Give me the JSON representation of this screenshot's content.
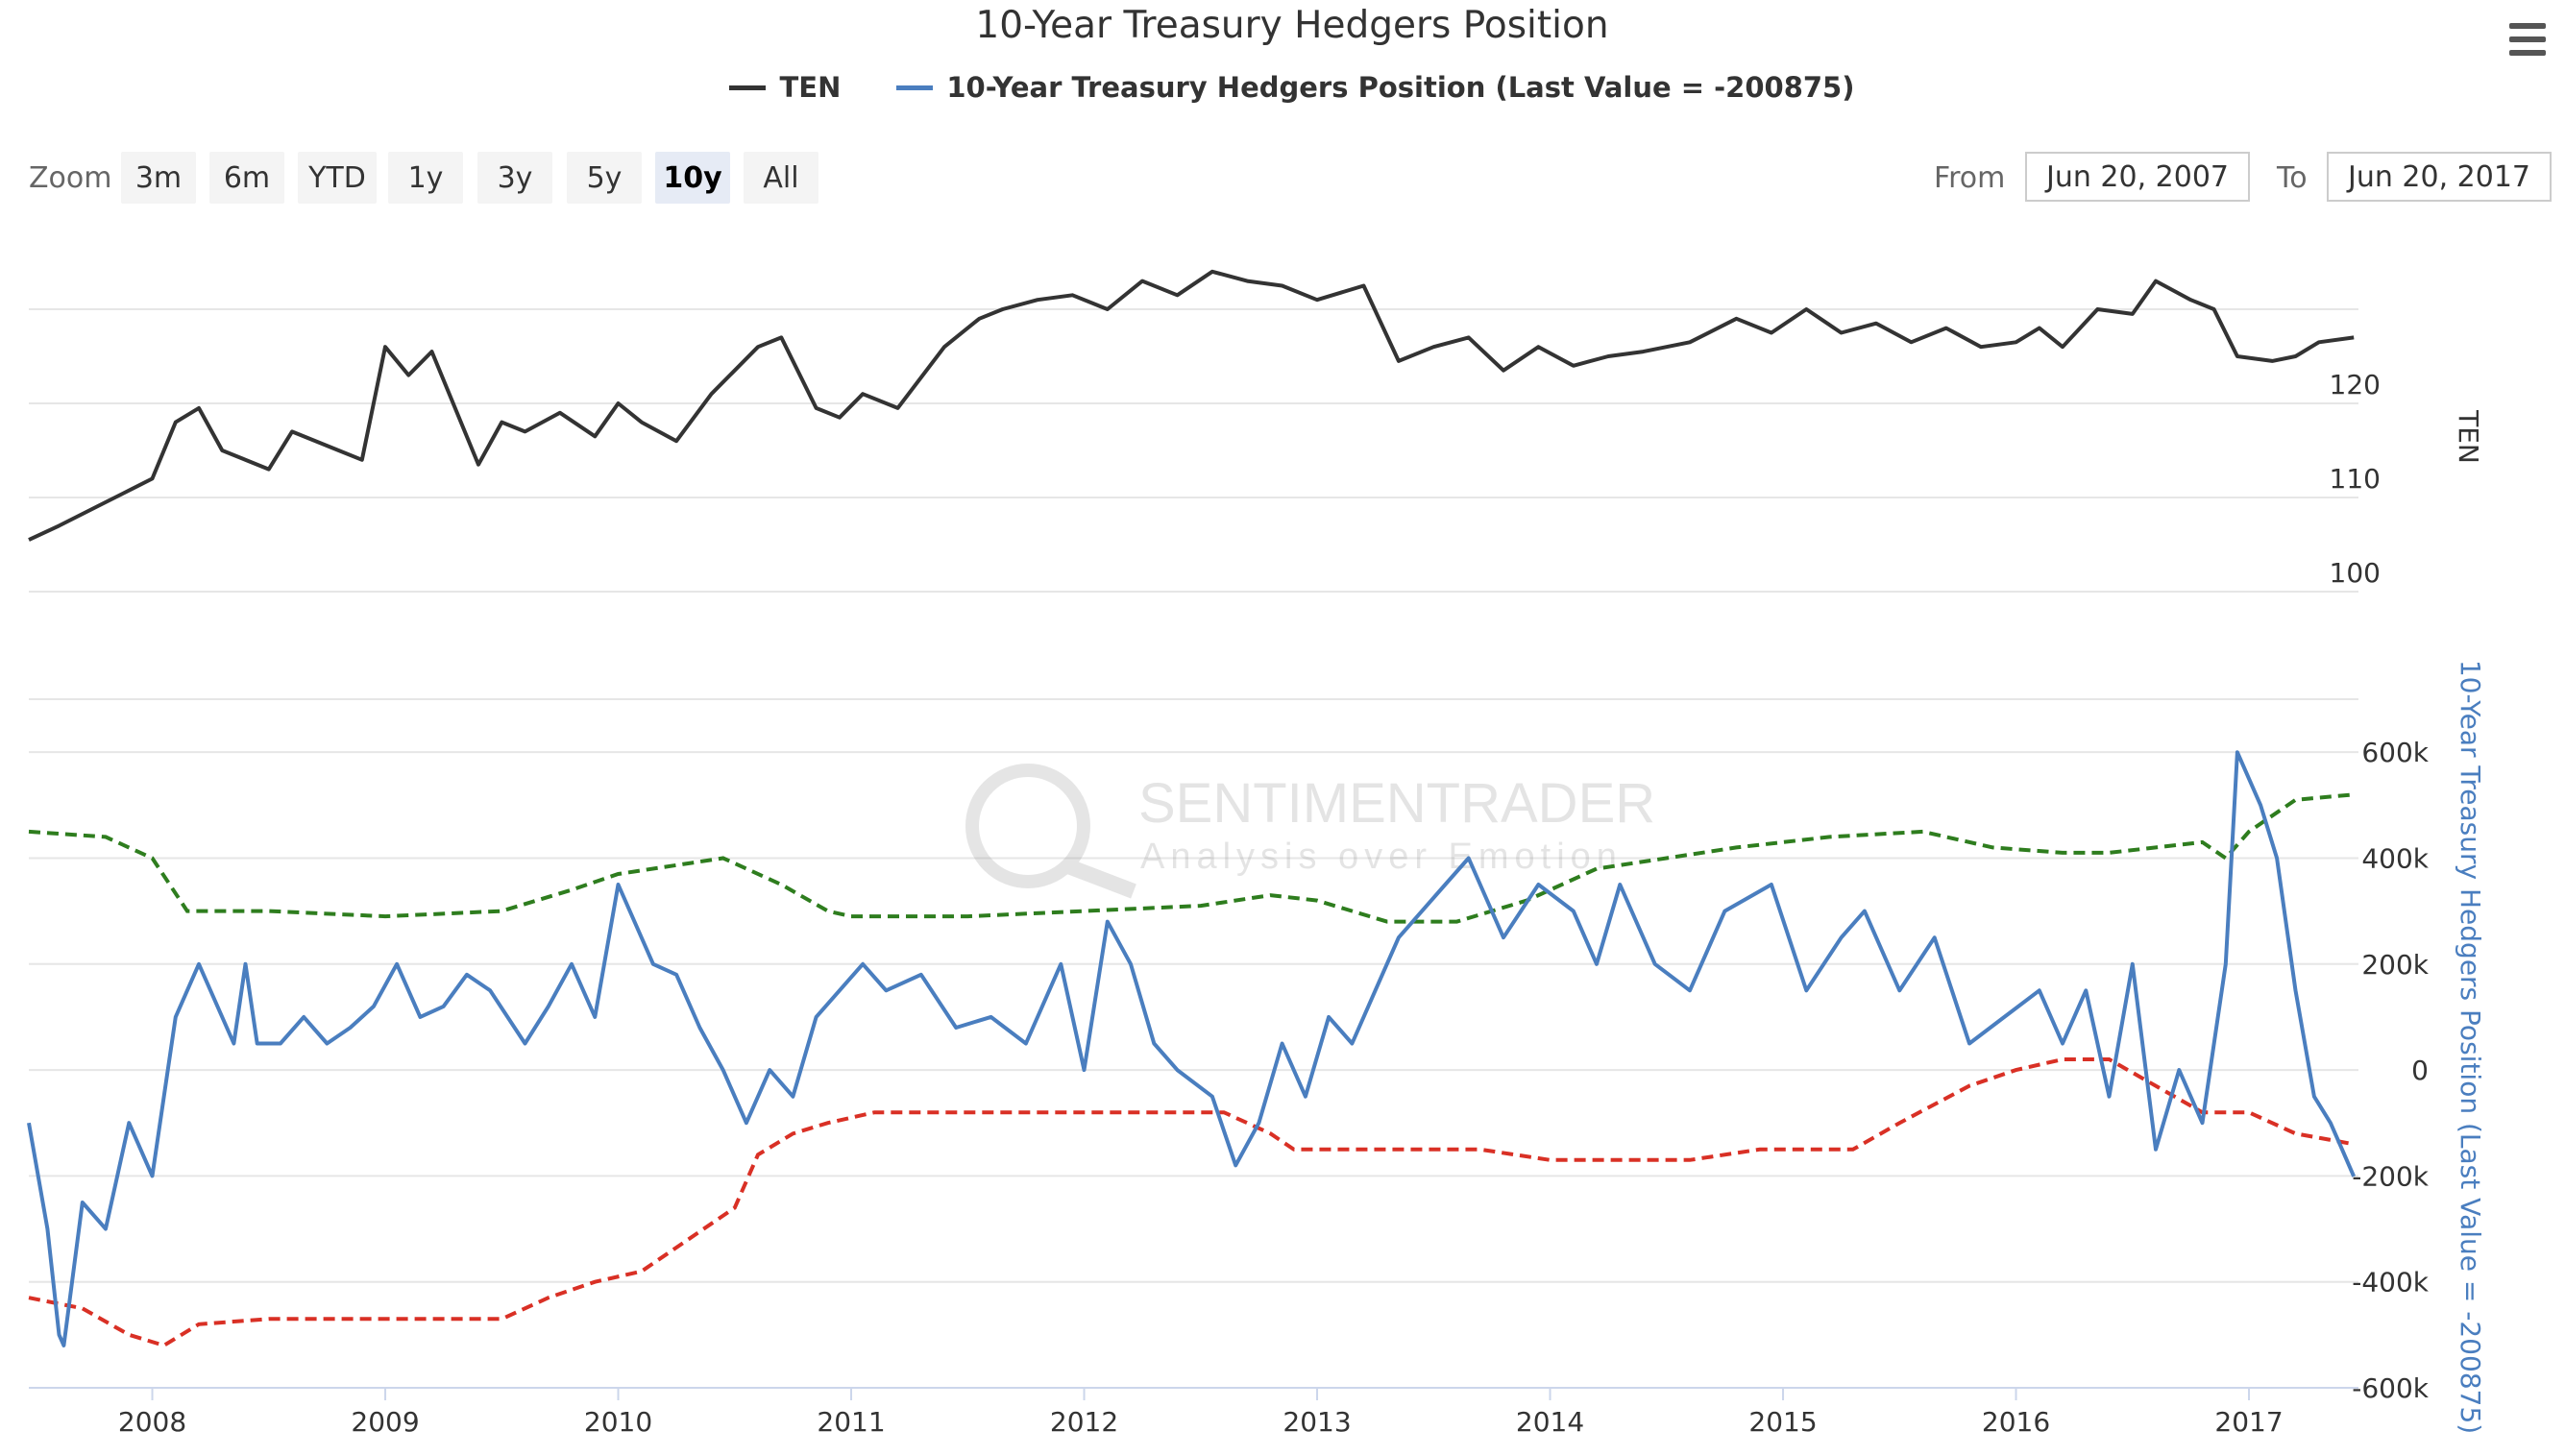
{
  "header": {
    "title": "10-Year Treasury Hedgers Position"
  },
  "legend": [
    {
      "label": "TEN",
      "color": "#333333"
    },
    {
      "label": "10-Year Treasury Hedgers Position (Last Value = -200875)",
      "color": "#4a7ebf"
    }
  ],
  "zoom": {
    "label": "Zoom",
    "buttons": [
      "3m",
      "6m",
      "YTD",
      "1y",
      "3y",
      "5y",
      "10y",
      "All"
    ],
    "active": "10y"
  },
  "range": {
    "from_label": "From",
    "from_value": "Jun 20, 2007",
    "to_label": "To",
    "to_value": "Jun 20, 2017"
  },
  "watermark": {
    "brand": "SENTIMENTRADER",
    "tagline": "Analysis over Emotion"
  },
  "colors": {
    "ten": "#333333",
    "hedgers": "#4a7ebf",
    "upper_band": "#2e7d1e",
    "lower_band": "#d93025",
    "grid": "#e6e6e6"
  },
  "chart_data": [
    {
      "type": "line",
      "name": "TEN",
      "axis_title": "TEN",
      "ylim": [
        95,
        130
      ],
      "yticks": [
        "100",
        "110",
        "120"
      ],
      "x": [
        2007.47,
        2007.6,
        2007.8,
        2008.0,
        2008.1,
        2008.2,
        2008.3,
        2008.5,
        2008.6,
        2008.8,
        2008.9,
        2009.0,
        2009.1,
        2009.2,
        2009.4,
        2009.5,
        2009.6,
        2009.75,
        2009.9,
        2010.0,
        2010.1,
        2010.25,
        2010.4,
        2010.6,
        2010.7,
        2010.85,
        2010.95,
        2011.05,
        2011.2,
        2011.4,
        2011.55,
        2011.65,
        2011.8,
        2011.95,
        2012.1,
        2012.25,
        2012.4,
        2012.55,
        2012.7,
        2012.85,
        2013.0,
        2013.2,
        2013.35,
        2013.5,
        2013.65,
        2013.8,
        2013.95,
        2014.1,
        2014.25,
        2014.4,
        2014.6,
        2014.8,
        2014.95,
        2015.1,
        2015.25,
        2015.4,
        2015.55,
        2015.7,
        2015.85,
        2016.0,
        2016.1,
        2016.2,
        2016.35,
        2016.5,
        2016.6,
        2016.75,
        2016.85,
        2016.95,
        2017.1,
        2017.2,
        2017.3,
        2017.45
      ],
      "values": [
        105.5,
        107,
        109.5,
        112,
        118,
        119.5,
        115,
        113,
        117,
        115,
        114,
        126,
        123,
        125.5,
        113.5,
        118,
        117,
        119,
        116.5,
        120,
        118,
        116,
        121,
        126,
        127,
        119.5,
        118.5,
        121,
        119.5,
        126,
        129,
        130,
        131,
        131.5,
        130,
        133,
        131.5,
        134,
        133,
        132.5,
        131,
        132.5,
        124.5,
        126,
        127,
        123.5,
        126,
        124,
        125,
        125.5,
        126.5,
        129,
        127.5,
        130,
        127.5,
        128.5,
        126.5,
        128,
        126,
        126.5,
        128,
        126,
        130,
        129.5,
        133,
        131,
        130,
        125,
        124.5,
        125,
        126.5,
        127
      ]
    },
    {
      "type": "line",
      "name": "10-Year Treasury Hedgers Position",
      "axis_title": "10-Year Treasury Hedgers Position (Last Value = -200875)",
      "ylim": [
        -600000,
        700000
      ],
      "yticks": [
        "-600k",
        "-400k",
        "-200k",
        "0",
        "200k",
        "400k",
        "600k"
      ],
      "x": [
        2007.47,
        2007.55,
        2007.6,
        2007.62,
        2007.7,
        2007.8,
        2007.9,
        2008.0,
        2008.1,
        2008.15,
        2008.2,
        2008.35,
        2008.4,
        2008.45,
        2008.55,
        2008.65,
        2008.75,
        2008.85,
        2008.95,
        2009.05,
        2009.15,
        2009.25,
        2009.35,
        2009.45,
        2009.6,
        2009.7,
        2009.8,
        2009.9,
        2010.0,
        2010.15,
        2010.25,
        2010.35,
        2010.45,
        2010.55,
        2010.65,
        2010.75,
        2010.85,
        2010.95,
        2011.05,
        2011.15,
        2011.3,
        2011.45,
        2011.6,
        2011.75,
        2011.9,
        2012.0,
        2012.1,
        2012.2,
        2012.3,
        2012.4,
        2012.55,
        2012.65,
        2012.75,
        2012.85,
        2012.95,
        2013.05,
        2013.15,
        2013.25,
        2013.35,
        2013.45,
        2013.55,
        2013.65,
        2013.8,
        2013.95,
        2014.1,
        2014.2,
        2014.3,
        2014.45,
        2014.6,
        2014.75,
        2014.95,
        2015.1,
        2015.25,
        2015.35,
        2015.5,
        2015.65,
        2015.8,
        2015.95,
        2016.1,
        2016.2,
        2016.3,
        2016.4,
        2016.5,
        2016.6,
        2016.7,
        2016.8,
        2016.9,
        2016.95,
        2017.05,
        2017.12,
        2017.2,
        2017.28,
        2017.35,
        2017.4,
        2017.45
      ],
      "values": [
        -100000,
        -300000,
        -500000,
        -520000,
        -250000,
        -300000,
        -100000,
        -200000,
        100000,
        150000,
        200000,
        50000,
        200000,
        50000,
        50000,
        100000,
        50000,
        80000,
        120000,
        200000,
        100000,
        120000,
        180000,
        150000,
        50000,
        120000,
        200000,
        100000,
        350000,
        200000,
        180000,
        80000,
        0,
        -100000,
        0,
        -50000,
        100000,
        150000,
        200000,
        150000,
        180000,
        80000,
        100000,
        50000,
        200000,
        0,
        280000,
        200000,
        50000,
        0,
        -50000,
        -180000,
        -100000,
        50000,
        -50000,
        100000,
        50000,
        150000,
        250000,
        300000,
        350000,
        400000,
        250000,
        350000,
        300000,
        200000,
        350000,
        200000,
        150000,
        300000,
        350000,
        150000,
        250000,
        300000,
        150000,
        250000,
        50000,
        100000,
        150000,
        50000,
        150000,
        -50000,
        200000,
        -150000,
        0,
        -100000,
        200000,
        600000,
        500000,
        400000,
        150000,
        -50000,
        -100000,
        -150000,
        -200875
      ]
    },
    {
      "type": "line",
      "name": "Upper band",
      "style": "dashed",
      "x": [
        2007.47,
        2007.8,
        2008.0,
        2008.15,
        2008.5,
        2009.0,
        2009.5,
        2009.8,
        2010.0,
        2010.3,
        2010.45,
        2010.7,
        2010.9,
        2011.0,
        2011.5,
        2012.0,
        2012.5,
        2012.8,
        2013.0,
        2013.3,
        2013.6,
        2013.9,
        2014.2,
        2014.5,
        2014.8,
        2015.0,
        2015.2,
        2015.6,
        2015.9,
        2016.2,
        2016.4,
        2016.6,
        2016.8,
        2016.9,
        2017.0,
        2017.2,
        2017.45
      ],
      "values": [
        450000,
        440000,
        400000,
        300000,
        300000,
        290000,
        300000,
        340000,
        370000,
        390000,
        400000,
        350000,
        300000,
        290000,
        290000,
        300000,
        310000,
        330000,
        320000,
        280000,
        280000,
        320000,
        380000,
        400000,
        420000,
        430000,
        440000,
        450000,
        420000,
        410000,
        410000,
        420000,
        430000,
        400000,
        450000,
        510000,
        520000
      ]
    },
    {
      "type": "line",
      "name": "Lower band",
      "style": "dashed",
      "x": [
        2007.47,
        2007.7,
        2007.9,
        2008.05,
        2008.2,
        2008.5,
        2009.0,
        2009.5,
        2009.7,
        2009.9,
        2010.1,
        2010.3,
        2010.5,
        2010.6,
        2010.75,
        2010.9,
        2011.1,
        2011.5,
        2012.0,
        2012.3,
        2012.6,
        2012.8,
        2012.9,
        2013.2,
        2013.7,
        2014.0,
        2014.3,
        2014.6,
        2014.9,
        2015.3,
        2015.5,
        2015.8,
        2016.0,
        2016.2,
        2016.4,
        2016.6,
        2016.8,
        2017.0,
        2017.2,
        2017.45
      ],
      "values": [
        -430000,
        -450000,
        -500000,
        -520000,
        -480000,
        -470000,
        -470000,
        -470000,
        -430000,
        -400000,
        -380000,
        -320000,
        -260000,
        -160000,
        -120000,
        -100000,
        -80000,
        -80000,
        -80000,
        -80000,
        -80000,
        -120000,
        -150000,
        -150000,
        -150000,
        -170000,
        -170000,
        -170000,
        -150000,
        -150000,
        -100000,
        -30000,
        0,
        20000,
        20000,
        -30000,
        -80000,
        -80000,
        -120000,
        -140000
      ]
    }
  ],
  "x_axis": {
    "ticks": [
      "2008",
      "2009",
      "2010",
      "2011",
      "2012",
      "2013",
      "2014",
      "2015",
      "2016",
      "2017"
    ],
    "range": [
      2007.47,
      2017.47
    ]
  }
}
